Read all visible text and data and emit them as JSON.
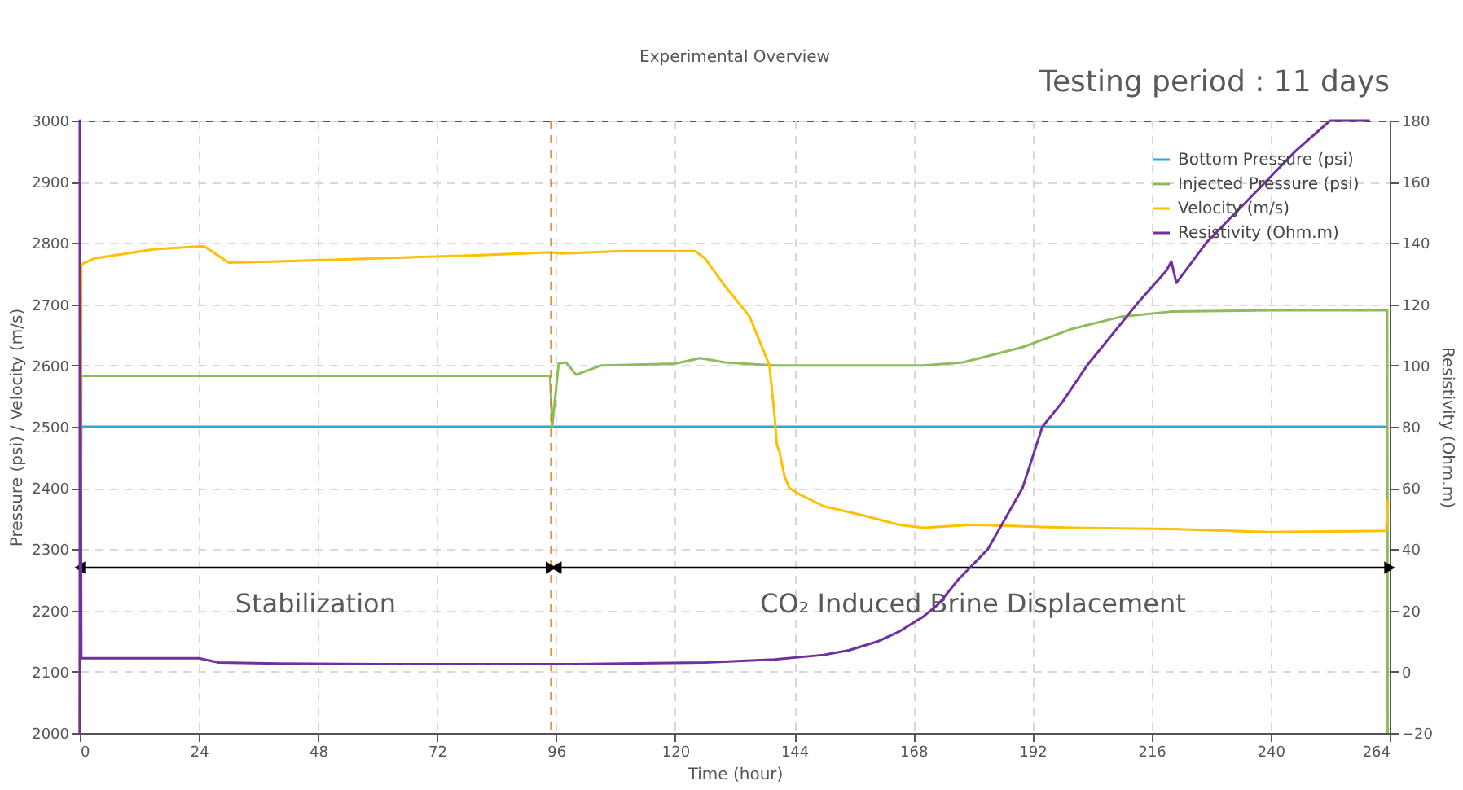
{
  "chart_data": {
    "type": "line",
    "title": "Experimental Overview",
    "xlabel": "Time (hour)",
    "ylabel": "Pressure (psi) / Velocity (m/s)",
    "y2label": "Resistivity (Ohm.m)",
    "xlim": [
      0,
      264
    ],
    "xticks": [
      0,
      24,
      48,
      72,
      96,
      120,
      144,
      168,
      192,
      216,
      240,
      264
    ],
    "ylim": [
      2000,
      3000
    ],
    "yticks": [
      2000,
      2100,
      2200,
      2300,
      2400,
      2500,
      2600,
      2700,
      2800,
      2900,
      3000
    ],
    "y2lim": [
      -20,
      180
    ],
    "y2ticks": [
      -20,
      0,
      20,
      40,
      60,
      80,
      100,
      120,
      140,
      160,
      180
    ],
    "grid": true,
    "legend": "top right",
    "line_style": "solid",
    "marker": "none",
    "series": [
      {
        "name": "Bottom Pressure (psi)",
        "color": "#29a9e1",
        "x": [
          0,
          0.3,
          100,
          200,
          263.5
        ],
        "values": [
          2000,
          2500,
          2500,
          2500,
          2500
        ]
      },
      {
        "name": "Injected Pressure (psi)",
        "color": "#8fbc5a",
        "x": [
          0,
          0.3,
          48,
          94.8,
          95.2,
          96.5,
          98,
          100,
          105,
          120,
          125,
          130,
          140,
          170,
          178,
          190,
          200,
          210,
          220,
          240,
          263.5,
          263.6
        ],
        "values": [
          2000,
          2583,
          2583,
          2583,
          2500,
          2603,
          2605,
          2585,
          2600,
          2603,
          2612,
          2605,
          2600,
          2600,
          2605,
          2630,
          2660,
          2680,
          2688,
          2690,
          2690,
          2000
        ]
      },
      {
        "name": "Velocity (m/s)",
        "color": "#ffc000",
        "x": [
          0,
          0.3,
          3,
          15,
          25,
          30,
          40,
          60,
          80,
          95,
          97,
          110,
          124,
          126,
          130,
          135,
          139,
          140,
          140.5,
          141,
          142,
          143,
          145,
          150,
          158,
          165,
          170,
          180,
          200,
          220,
          240,
          263.3,
          263.6
        ],
        "values": [
          2000,
          2765,
          2775,
          2790,
          2795,
          2768,
          2770,
          2775,
          2780,
          2785,
          2783,
          2787,
          2787,
          2775,
          2730,
          2680,
          2600,
          2520,
          2470,
          2460,
          2420,
          2400,
          2390,
          2370,
          2355,
          2340,
          2335,
          2340,
          2335,
          2333,
          2328,
          2330,
          2380
        ]
      },
      {
        "name": "Resistivity (Ohm.m)",
        "color": "#7030a0",
        "axis": "y2",
        "x": [
          0,
          0,
          0.3,
          24,
          28,
          40,
          60,
          100,
          126,
          140,
          150,
          155,
          161,
          165,
          170,
          173,
          177,
          183,
          190,
          194,
          198,
          203,
          208,
          213,
          219,
          220,
          221,
          227,
          233,
          239,
          245,
          252,
          260
        ],
        "values": [
          -20,
          180,
          4.4,
          4.4,
          3,
          2.7,
          2.5,
          2.5,
          3,
          4,
          5.5,
          7,
          10,
          13,
          18,
          22,
          30,
          40,
          60,
          80,
          88,
          100,
          110,
          120,
          131,
          134,
          127,
          140,
          150,
          160,
          170,
          180,
          180
        ]
      }
    ],
    "ref_lines": [
      {
        "axis": "x",
        "value": 95,
        "color": "#e07b1a",
        "line_style": "dashed"
      }
    ],
    "annotations": [
      "Testing period : 11 days",
      "Stabilization",
      "CO₂ Induced Brine Displacement"
    ]
  }
}
